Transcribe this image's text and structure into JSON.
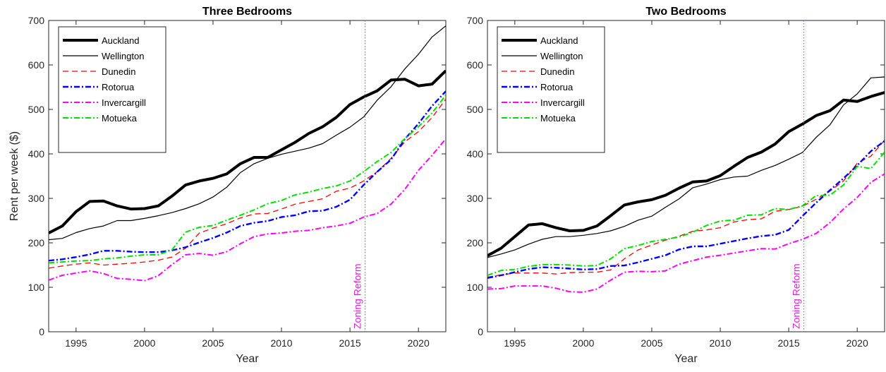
{
  "chart_data": [
    {
      "type": "line",
      "title": "Three Bedrooms",
      "xlabel": "Year",
      "ylabel": "Rent per week ($)",
      "xlim": [
        1993,
        2022
      ],
      "ylim": [
        0,
        700
      ],
      "xticks": [
        1995,
        2000,
        2005,
        2010,
        2015,
        2020
      ],
      "yticks": [
        0,
        100,
        200,
        300,
        400,
        500,
        600,
        700
      ],
      "grid": false,
      "legend_position": "top-left",
      "annotation": {
        "text": "Zoning Reform",
        "x": 2016.1,
        "color": "#e020e0"
      },
      "x": [
        1993,
        1994,
        1995,
        1996,
        1997,
        1998,
        1999,
        2000,
        2001,
        2002,
        2003,
        2004,
        2005,
        2006,
        2007,
        2008,
        2009,
        2010,
        2011,
        2012,
        2013,
        2014,
        2015,
        2016,
        2017,
        2018,
        2019,
        2020,
        2021,
        2022
      ],
      "series": [
        {
          "name": "Auckland",
          "color": "#000000",
          "width": 4,
          "dash": "",
          "values": [
            222,
            238,
            270,
            293,
            294,
            283,
            276,
            277,
            283,
            305,
            330,
            339,
            345,
            355,
            378,
            392,
            392,
            409,
            426,
            446,
            461,
            482,
            511,
            528,
            542,
            566,
            568,
            553,
            557,
            587
          ]
        },
        {
          "name": "Wellington",
          "color": "#000000",
          "width": 1.2,
          "dash": "",
          "values": [
            207,
            210,
            223,
            232,
            238,
            250,
            250,
            255,
            261,
            268,
            277,
            288,
            303,
            325,
            358,
            378,
            390,
            399,
            406,
            413,
            423,
            442,
            460,
            483,
            521,
            551,
            591,
            624,
            663,
            688
          ]
        },
        {
          "name": "Dunedin",
          "color": "#ff0000",
          "width": 1.3,
          "dash": "8,5",
          "values": [
            143,
            148,
            152,
            155,
            150,
            152,
            154,
            157,
            161,
            168,
            188,
            222,
            233,
            243,
            256,
            265,
            266,
            276,
            287,
            293,
            299,
            316,
            323,
            339,
            360,
            390,
            427,
            450,
            482,
            523
          ]
        },
        {
          "name": "Rotorua",
          "color": "#0000ff",
          "width": 2.4,
          "dash": "8,3,2,3",
          "values": [
            160,
            163,
            168,
            174,
            182,
            182,
            180,
            179,
            179,
            183,
            190,
            201,
            211,
            223,
            238,
            245,
            249,
            258,
            262,
            271,
            272,
            281,
            297,
            330,
            360,
            387,
            433,
            468,
            508,
            541
          ]
        },
        {
          "name": "Invercargill",
          "color": "#ff00ff",
          "width": 2,
          "dash": "8,3,2,3",
          "values": [
            116,
            127,
            132,
            137,
            131,
            120,
            118,
            115,
            126,
            151,
            173,
            176,
            172,
            180,
            198,
            214,
            220,
            222,
            226,
            228,
            234,
            238,
            244,
            258,
            266,
            287,
            320,
            363,
            397,
            434
          ]
        },
        {
          "name": "Motueka",
          "color": "#00e000",
          "width": 2,
          "dash": "8,3,2,3",
          "values": [
            155,
            157,
            159,
            160,
            164,
            166,
            170,
            173,
            173,
            184,
            224,
            235,
            239,
            251,
            262,
            274,
            288,
            295,
            308,
            314,
            322,
            328,
            339,
            360,
            383,
            403,
            434,
            461,
            492,
            532
          ]
        }
      ]
    },
    {
      "type": "line",
      "title": "Two Bedrooms",
      "xlabel": "Year",
      "ylabel": "",
      "xlim": [
        1993,
        2022
      ],
      "ylim": [
        0,
        700
      ],
      "xticks": [
        1995,
        2000,
        2005,
        2010,
        2015,
        2020
      ],
      "yticks": [
        0,
        100,
        200,
        300,
        400,
        500,
        600,
        700
      ],
      "grid": false,
      "legend_position": "top-left",
      "annotation": {
        "text": "Zoning Reform",
        "x": 2016.1,
        "color": "#e020e0"
      },
      "x": [
        1993,
        1994,
        1995,
        1996,
        1997,
        1998,
        1999,
        2000,
        2001,
        2002,
        2003,
        2004,
        2005,
        2006,
        2007,
        2008,
        2009,
        2010,
        2011,
        2012,
        2013,
        2014,
        2015,
        2016,
        2017,
        2018,
        2019,
        2020,
        2021,
        2022
      ],
      "series": [
        {
          "name": "Auckland",
          "color": "#000000",
          "width": 4,
          "dash": "",
          "values": [
            171,
            188,
            214,
            240,
            243,
            234,
            227,
            228,
            238,
            261,
            285,
            292,
            297,
            307,
            323,
            337,
            339,
            351,
            372,
            392,
            404,
            422,
            450,
            467,
            486,
            497,
            521,
            518,
            529,
            538
          ]
        },
        {
          "name": "Wellington",
          "color": "#000000",
          "width": 1.2,
          "dash": "",
          "values": [
            167,
            175,
            184,
            197,
            208,
            214,
            214,
            217,
            221,
            227,
            237,
            251,
            260,
            280,
            299,
            324,
            332,
            342,
            348,
            350,
            363,
            374,
            388,
            403,
            437,
            465,
            510,
            535,
            571,
            573
          ]
        },
        {
          "name": "Dunedin",
          "color": "#ff0000",
          "width": 1.3,
          "dash": "8,5",
          "values": [
            123,
            128,
            132,
            132,
            132,
            130,
            133,
            134,
            134,
            139,
            164,
            184,
            195,
            206,
            215,
            226,
            229,
            234,
            247,
            252,
            254,
            271,
            275,
            282,
            298,
            316,
            339,
            379,
            395,
            431
          ]
        },
        {
          "name": "Rotorua",
          "color": "#0000ff",
          "width": 2.4,
          "dash": "8,3,2,3",
          "values": [
            121,
            127,
            134,
            141,
            145,
            144,
            142,
            140,
            141,
            148,
            149,
            156,
            164,
            172,
            185,
            192,
            192,
            198,
            204,
            210,
            215,
            218,
            229,
            260,
            290,
            318,
            345,
            374,
            406,
            429
          ]
        },
        {
          "name": "Invercargill",
          "color": "#ff00ff",
          "width": 2,
          "dash": "8,3,2,3",
          "values": [
            96,
            97,
            103,
            103,
            103,
            98,
            90,
            89,
            96,
            116,
            134,
            136,
            135,
            137,
            152,
            160,
            168,
            172,
            177,
            182,
            187,
            186,
            198,
            208,
            221,
            245,
            276,
            302,
            336,
            355
          ]
        },
        {
          "name": "Motueka",
          "color": "#00e000",
          "width": 2,
          "dash": "8,3,2,3",
          "values": [
            127,
            138,
            140,
            147,
            151,
            151,
            150,
            148,
            149,
            164,
            187,
            194,
            203,
            208,
            213,
            224,
            239,
            249,
            251,
            262,
            263,
            277,
            275,
            283,
            306,
            307,
            330,
            372,
            367,
            404
          ]
        }
      ]
    }
  ]
}
